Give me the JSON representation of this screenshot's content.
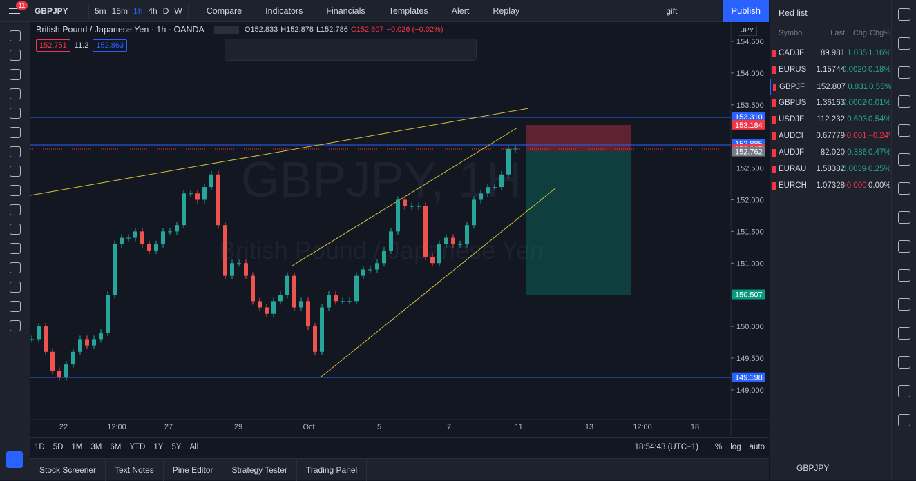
{
  "header": {
    "badge": "11",
    "symbol": "GBPJPY",
    "intervals": [
      "5m",
      "15m",
      "1h",
      "4h",
      "D",
      "W"
    ],
    "buttons": [
      "Compare",
      "Indicators",
      "Financials",
      "Templates",
      "Alert",
      "Replay"
    ],
    "gift": "gift",
    "publish": "Publish"
  },
  "legend": {
    "title": "British Pound / Japanese Yen · 1h · OANDA",
    "o": "O152.833",
    "h": "H152.878",
    "l": "L152.786",
    "c": "C152.807",
    "chg": "−0.026 (−0.02%)",
    "bid": "152.751",
    "spread": "11.2",
    "ask": "152.863"
  },
  "chart": {
    "watermark": "GBPJPY, 1H",
    "watermark_sub": "British Pound / Japanese Yen",
    "currency": "JPY",
    "ylim": [
      148.53,
      154.805
    ],
    "price_ticks": [
      {
        "value": 154.5,
        "label": "154.500"
      },
      {
        "value": 154,
        "label": "154.000"
      },
      {
        "value": 153.5,
        "label": "153.500"
      },
      {
        "value": 152.5,
        "label": "152.500"
      },
      {
        "value": 152,
        "label": "152.000"
      },
      {
        "value": 151.5,
        "label": "151.500"
      },
      {
        "value": 151,
        "label": "151.000"
      },
      {
        "value": 150,
        "label": "150.000"
      },
      {
        "value": 149.5,
        "label": "149.500"
      },
      {
        "value": 149,
        "label": "149.000"
      }
    ],
    "price_labels": [
      {
        "value": 153.31,
        "label": "153.310",
        "color": "#2962ff"
      },
      {
        "value": 153.184,
        "label": "153.184",
        "color": "#f23645"
      },
      {
        "value": 152.885,
        "label": "152.885",
        "color": "#2962ff"
      },
      {
        "value": 152.807,
        "label": "152.807",
        "color": "#f23645"
      },
      {
        "value": 152.762,
        "label": "152.762",
        "color": "#787b86"
      },
      {
        "value": 150.507,
        "label": "150.507",
        "color": "#089981"
      },
      {
        "value": 149.198,
        "label": "149.198",
        "color": "#2962ff"
      }
    ],
    "time_labels": [
      "22",
      "12:00",
      "27",
      "29",
      "Oct",
      "5",
      "7",
      "11",
      "13",
      "12:00",
      "18"
    ],
    "closes": [
      149.8,
      150.0,
      149.6,
      149.3,
      149.2,
      149.4,
      149.6,
      149.8,
      149.7,
      149.8,
      149.9,
      150.5,
      151.3,
      151.4,
      151.4,
      151.5,
      151.3,
      151.2,
      151.3,
      151.5,
      151.5,
      151.6,
      152.1,
      152.1,
      152.0,
      152.2,
      152.4,
      151.6,
      150.8,
      151.0,
      151.0,
      150.8,
      150.4,
      150.3,
      150.2,
      150.4,
      150.5,
      150.8,
      150.3,
      150.4,
      150.0,
      149.6,
      150.3,
      150.5,
      150.4,
      150.4,
      150.4,
      150.8,
      150.9,
      150.9,
      151.0,
      151.2,
      151.5,
      152.0,
      151.9,
      151.9,
      151.9,
      151.1,
      151.0,
      151.3,
      151.4,
      151.3,
      151.3,
      151.6,
      152.0,
      152.1,
      152.2,
      152.2,
      152.4,
      152.8,
      152.807
    ]
  },
  "bottom_bar": {
    "ranges": [
      "1D",
      "5D",
      "1M",
      "3M",
      "6M",
      "YTD",
      "1Y",
      "5Y",
      "All"
    ],
    "time": "18:54:43 (UTC+1)",
    "percent": "%",
    "log": "log",
    "auto": "auto"
  },
  "footer": {
    "tabs": [
      "Stock Screener",
      "Text Notes",
      "Pine Editor",
      "Strategy Tester",
      "Trading Panel"
    ]
  },
  "watchlist": {
    "title": "Red list",
    "columns": [
      "Symbol",
      "Last",
      "Chg",
      "Chg%"
    ],
    "rows": [
      [
        "CADJF",
        "89.981",
        "1.035",
        "1.16%"
      ],
      [
        "EURUS",
        "1.15744",
        "0.00208",
        "0.18%"
      ],
      [
        "GBPJF",
        "152.807",
        "0.831",
        "0.55%"
      ],
      [
        "GBPUS",
        "1.36163",
        "0.00020",
        "0.01%"
      ],
      [
        "USDJF",
        "112.232",
        "0.603",
        "0.54%"
      ],
      [
        "AUDCI",
        "0.67779",
        "−0.0016",
        "−0.24%"
      ],
      [
        "AUDJF",
        "82.020",
        "0.386",
        "0.47%"
      ],
      [
        "EURAU",
        "1.58382",
        "0.00394",
        "0.25%"
      ],
      [
        "EURCH",
        "1.07328",
        "−0.0000",
        "0.00%"
      ]
    ],
    "footer_symbol": "GBPJPY"
  }
}
